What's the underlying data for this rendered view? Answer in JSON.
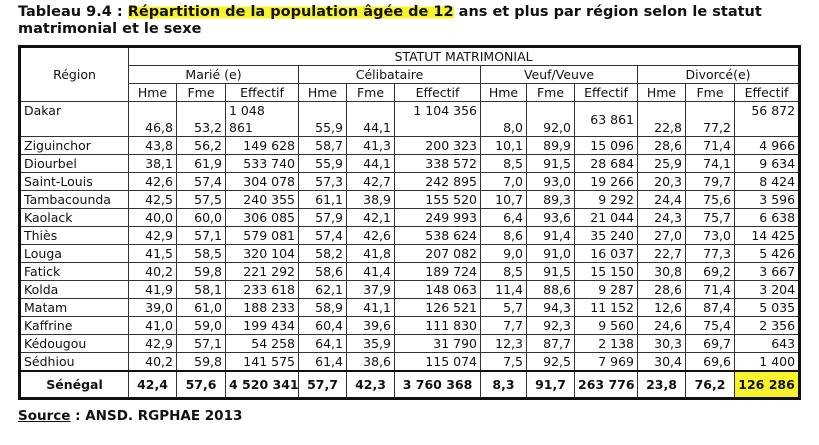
{
  "title": {
    "prefix": "Tableau 9.4 : ",
    "highlighted": "Répartition de la population âgée de 12",
    "rest": " ans et plus par région selon le statut matrimonial et le sexe"
  },
  "highlight_color": "#f8f32b",
  "table": {
    "region_header": "Région",
    "super_header": "STATUT MATRIMONIAL",
    "groups": [
      "Marié (e)",
      "Célibataire",
      "Veuf/Veuve",
      "Divorcé(e)"
    ],
    "sub_headers": [
      "Hme",
      "Fme",
      "Effectif"
    ],
    "rows": [
      {
        "region": "Dakar",
        "values": [
          "46,8",
          "53,2",
          "1 048 861",
          "55,9",
          "44,1",
          "1 104 356",
          "8,0",
          "92,0",
          "63 861",
          "22,8",
          "77,2",
          "56 872"
        ]
      },
      {
        "region": "Ziguinchor",
        "values": [
          "43,8",
          "56,2",
          "149 628",
          "58,7",
          "41,3",
          "200 323",
          "10,1",
          "89,9",
          "15 096",
          "28,6",
          "71,4",
          "4 966"
        ]
      },
      {
        "region": "Diourbel",
        "values": [
          "38,1",
          "61,9",
          "533 740",
          "55,9",
          "44,1",
          "338 572",
          "8,5",
          "91,5",
          "28 684",
          "25,9",
          "74,1",
          "9 634"
        ]
      },
      {
        "region": "Saint-Louis",
        "values": [
          "42,6",
          "57,4",
          "304 078",
          "57,3",
          "42,7",
          "242 895",
          "7,0",
          "93,0",
          "19 266",
          "20,3",
          "79,7",
          "8 424"
        ]
      },
      {
        "region": "Tambacounda",
        "values": [
          "42,5",
          "57,5",
          "240 355",
          "61,1",
          "38,9",
          "155 520",
          "10,7",
          "89,3",
          "9 292",
          "24,4",
          "75,6",
          "3 596"
        ]
      },
      {
        "region": "Kaolack",
        "values": [
          "40,0",
          "60,0",
          "306 085",
          "57,9",
          "42,1",
          "249 993",
          "6,4",
          "93,6",
          "21 044",
          "24,3",
          "75,7",
          "6 638"
        ]
      },
      {
        "region": "Thiès",
        "values": [
          "42,9",
          "57,1",
          "579 081",
          "57,4",
          "42,6",
          "538 624",
          "8,6",
          "91,4",
          "35 240",
          "27,0",
          "73,0",
          "14 425"
        ]
      },
      {
        "region": "Louga",
        "values": [
          "41,5",
          "58,5",
          "320 104",
          "58,2",
          "41,8",
          "207 082",
          "9,0",
          "91,0",
          "16 037",
          "22,7",
          "77,3",
          "5 426"
        ]
      },
      {
        "region": "Fatick",
        "values": [
          "40,2",
          "59,8",
          "221 292",
          "58,6",
          "41,4",
          "189 724",
          "8,5",
          "91,5",
          "15 150",
          "30,8",
          "69,2",
          "3 667"
        ]
      },
      {
        "region": "Kolda",
        "values": [
          "41,9",
          "58,1",
          "233 618",
          "62,1",
          "37,9",
          "148 063",
          "11,4",
          "88,6",
          "9 287",
          "28,6",
          "71,4",
          "3 204"
        ]
      },
      {
        "region": "Matam",
        "values": [
          "39,0",
          "61,0",
          "188 233",
          "58,9",
          "41,1",
          "126 521",
          "5,7",
          "94,3",
          "11 152",
          "12,6",
          "87,4",
          "5 035"
        ]
      },
      {
        "region": "Kaffrine",
        "values": [
          "41,0",
          "59,0",
          "199 434",
          "60,4",
          "39,6",
          "111 830",
          "7,7",
          "92,3",
          "9 560",
          "24,6",
          "75,4",
          "2 356"
        ]
      },
      {
        "region": "Kédougou",
        "values": [
          "42,9",
          "57,1",
          "54 258",
          "64,1",
          "35,9",
          "31 790",
          "12,3",
          "87,7",
          "2 138",
          "30,3",
          "69,7",
          "643"
        ]
      },
      {
        "region": "Sédhiou",
        "values": [
          "40,2",
          "59,8",
          "141 575",
          "61,4",
          "38,6",
          "115 074",
          "7,5",
          "92,5",
          "7 969",
          "30,4",
          "69,6",
          "1 400"
        ]
      }
    ],
    "total": {
      "region": "Sénégal",
      "values": [
        "42,4",
        "57,6",
        "4 520 341",
        "57,7",
        "42,3",
        "3 760 368",
        "8,3",
        "91,7",
        "263 776",
        "23,8",
        "76,2",
        "126 286"
      ]
    }
  },
  "source": {
    "label": "Source",
    "text": " : ANSD. RGPHAE 2013"
  }
}
